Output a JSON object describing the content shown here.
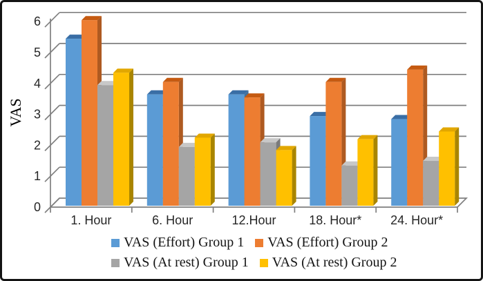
{
  "figure": {
    "background": "#ffffff",
    "border_color": "#141414",
    "axis_color": "#7f7f7f",
    "text_color": "#262626"
  },
  "chart_data": {
    "type": "bar",
    "subtype": "3d-clustered-column",
    "title": "",
    "xlabel": "",
    "ylabel": "VAS",
    "ylim": [
      0,
      6
    ],
    "ytick_labels": [
      "0",
      "1",
      "2",
      "3",
      "4",
      "5",
      "6"
    ],
    "grid": true,
    "legend_position": "bottom-two-rows",
    "categories": [
      "1. Hour",
      "6. Hour",
      "12.Hour",
      "18. Hour*",
      "24. Hour*"
    ],
    "series": [
      {
        "name": "VAS (Effort) Group 1",
        "color": "#5B9BD5",
        "color_top": "#3A6EA5",
        "color_side": "#41719C",
        "values": [
          5.4,
          3.6,
          3.6,
          2.9,
          2.8
        ]
      },
      {
        "name": "VAS (Effort) Group 2",
        "color": "#ED7D31",
        "color_top": "#C55A11",
        "color_side": "#AE5A21",
        "values": [
          6.0,
          4.0,
          3.5,
          4.0,
          4.4
        ]
      },
      {
        "name": "VAS (At rest) Group 1",
        "color": "#A5A5A5",
        "color_top": "#C8C8C8",
        "color_side": "#7B7B7B",
        "values": [
          3.9,
          1.9,
          2.05,
          1.3,
          1.45
        ]
      },
      {
        "name": "VAS (At rest) Group 2",
        "color": "#FFC000",
        "color_top": "#E2A700",
        "color_side": "#A98500",
        "values": [
          4.3,
          2.2,
          1.8,
          2.15,
          2.4
        ]
      }
    ]
  }
}
